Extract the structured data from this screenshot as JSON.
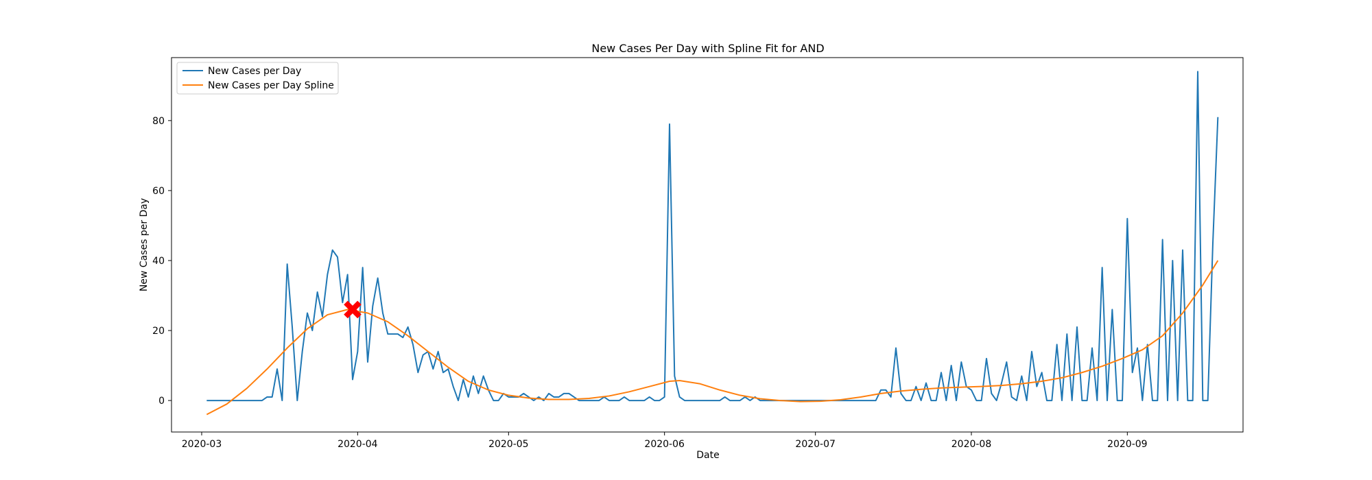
{
  "chart_data": {
    "type": "line",
    "title": "New Cases Per Day with Spline Fit for AND",
    "xlabel": "Date",
    "ylabel": "New Cases per Day",
    "x_axis": {
      "kind": "date",
      "range": [
        "2020-02-24",
        "2020-09-24"
      ],
      "ticks": [
        "2020-03-01",
        "2020-04-01",
        "2020-05-01",
        "2020-06-01",
        "2020-07-01",
        "2020-08-01",
        "2020-09-01"
      ],
      "tick_labels": [
        "2020-03",
        "2020-04",
        "2020-05",
        "2020-06",
        "2020-07",
        "2020-08",
        "2020-09"
      ]
    },
    "y_axis": {
      "range": [
        -9,
        98
      ],
      "ticks": [
        0,
        20,
        40,
        60,
        80
      ],
      "tick_labels": [
        "0",
        "20",
        "40",
        "60",
        "80"
      ]
    },
    "grid": false,
    "legend": {
      "placement": "top-left"
    },
    "series": [
      {
        "name": "New Cases per Day",
        "color": "#1f77b4",
        "points": [
          [
            "2020-03-02",
            0
          ],
          [
            "2020-03-13",
            0
          ],
          [
            "2020-03-14",
            1
          ],
          [
            "2020-03-15",
            1
          ],
          [
            "2020-03-16",
            9
          ],
          [
            "2020-03-17",
            0
          ],
          [
            "2020-03-18",
            39
          ],
          [
            "2020-03-19",
            21
          ],
          [
            "2020-03-20",
            0
          ],
          [
            "2020-03-21",
            14
          ],
          [
            "2020-03-22",
            25
          ],
          [
            "2020-03-23",
            20
          ],
          [
            "2020-03-24",
            31
          ],
          [
            "2020-03-25",
            24
          ],
          [
            "2020-03-26",
            36
          ],
          [
            "2020-03-27",
            43
          ],
          [
            "2020-03-28",
            41
          ],
          [
            "2020-03-29",
            28
          ],
          [
            "2020-03-30",
            36
          ],
          [
            "2020-03-31",
            6
          ],
          [
            "2020-04-01",
            14
          ],
          [
            "2020-04-02",
            38
          ],
          [
            "2020-04-03",
            11
          ],
          [
            "2020-04-04",
            27
          ],
          [
            "2020-04-05",
            35
          ],
          [
            "2020-04-06",
            25
          ],
          [
            "2020-04-07",
            19
          ],
          [
            "2020-04-08",
            19
          ],
          [
            "2020-04-09",
            19
          ],
          [
            "2020-04-10",
            18
          ],
          [
            "2020-04-11",
            21
          ],
          [
            "2020-04-12",
            16
          ],
          [
            "2020-04-13",
            8
          ],
          [
            "2020-04-14",
            13
          ],
          [
            "2020-04-15",
            14
          ],
          [
            "2020-04-16",
            9
          ],
          [
            "2020-04-17",
            14
          ],
          [
            "2020-04-18",
            8
          ],
          [
            "2020-04-19",
            9
          ],
          [
            "2020-04-20",
            4
          ],
          [
            "2020-04-21",
            0
          ],
          [
            "2020-04-22",
            6
          ],
          [
            "2020-04-23",
            1
          ],
          [
            "2020-04-24",
            7
          ],
          [
            "2020-04-25",
            2
          ],
          [
            "2020-04-26",
            7
          ],
          [
            "2020-04-27",
            3
          ],
          [
            "2020-04-28",
            0
          ],
          [
            "2020-04-29",
            0
          ],
          [
            "2020-04-30",
            2
          ],
          [
            "2020-05-01",
            1
          ],
          [
            "2020-05-02",
            1
          ],
          [
            "2020-05-03",
            1
          ],
          [
            "2020-05-04",
            2
          ],
          [
            "2020-05-05",
            1
          ],
          [
            "2020-05-06",
            0
          ],
          [
            "2020-05-07",
            1
          ],
          [
            "2020-05-08",
            0
          ],
          [
            "2020-05-09",
            2
          ],
          [
            "2020-05-10",
            1
          ],
          [
            "2020-05-11",
            1
          ],
          [
            "2020-05-12",
            2
          ],
          [
            "2020-05-13",
            2
          ],
          [
            "2020-05-14",
            1
          ],
          [
            "2020-05-15",
            0
          ],
          [
            "2020-05-16",
            0
          ],
          [
            "2020-05-17",
            0
          ],
          [
            "2020-05-18",
            0
          ],
          [
            "2020-05-19",
            0
          ],
          [
            "2020-05-20",
            1
          ],
          [
            "2020-05-21",
            0
          ],
          [
            "2020-05-22",
            0
          ],
          [
            "2020-05-23",
            0
          ],
          [
            "2020-05-24",
            1
          ],
          [
            "2020-05-25",
            0
          ],
          [
            "2020-05-26",
            0
          ],
          [
            "2020-05-27",
            0
          ],
          [
            "2020-05-28",
            0
          ],
          [
            "2020-05-29",
            1
          ],
          [
            "2020-05-30",
            0
          ],
          [
            "2020-05-31",
            0
          ],
          [
            "2020-06-01",
            1
          ],
          [
            "2020-06-02",
            79
          ],
          [
            "2020-06-03",
            7
          ],
          [
            "2020-06-04",
            1
          ],
          [
            "2020-06-05",
            0
          ],
          [
            "2020-06-06",
            0
          ],
          [
            "2020-06-07",
            0
          ],
          [
            "2020-06-08",
            0
          ],
          [
            "2020-06-09",
            0
          ],
          [
            "2020-06-10",
            0
          ],
          [
            "2020-06-11",
            0
          ],
          [
            "2020-06-12",
            0
          ],
          [
            "2020-06-13",
            1
          ],
          [
            "2020-06-14",
            0
          ],
          [
            "2020-06-15",
            0
          ],
          [
            "2020-06-16",
            0
          ],
          [
            "2020-06-17",
            1
          ],
          [
            "2020-06-18",
            0
          ],
          [
            "2020-06-19",
            1
          ],
          [
            "2020-06-20",
            0
          ],
          [
            "2020-06-21",
            0
          ],
          [
            "2020-07-13",
            0
          ],
          [
            "2020-07-14",
            3
          ],
          [
            "2020-07-15",
            3
          ],
          [
            "2020-07-16",
            1
          ],
          [
            "2020-07-17",
            15
          ],
          [
            "2020-07-18",
            2
          ],
          [
            "2020-07-19",
            0
          ],
          [
            "2020-07-20",
            0
          ],
          [
            "2020-07-21",
            4
          ],
          [
            "2020-07-22",
            0
          ],
          [
            "2020-07-23",
            5
          ],
          [
            "2020-07-24",
            0
          ],
          [
            "2020-07-25",
            0
          ],
          [
            "2020-07-26",
            8
          ],
          [
            "2020-07-27",
            0
          ],
          [
            "2020-07-28",
            10
          ],
          [
            "2020-07-29",
            0
          ],
          [
            "2020-07-30",
            11
          ],
          [
            "2020-07-31",
            4
          ],
          [
            "2020-08-01",
            3
          ],
          [
            "2020-08-02",
            0
          ],
          [
            "2020-08-03",
            0
          ],
          [
            "2020-08-04",
            12
          ],
          [
            "2020-08-05",
            2
          ],
          [
            "2020-08-06",
            0
          ],
          [
            "2020-08-07",
            5
          ],
          [
            "2020-08-08",
            11
          ],
          [
            "2020-08-09",
            1
          ],
          [
            "2020-08-10",
            0
          ],
          [
            "2020-08-11",
            7
          ],
          [
            "2020-08-12",
            0
          ],
          [
            "2020-08-13",
            14
          ],
          [
            "2020-08-14",
            4
          ],
          [
            "2020-08-15",
            8
          ],
          [
            "2020-08-16",
            0
          ],
          [
            "2020-08-17",
            0
          ],
          [
            "2020-08-18",
            16
          ],
          [
            "2020-08-19",
            0
          ],
          [
            "2020-08-20",
            19
          ],
          [
            "2020-08-21",
            0
          ],
          [
            "2020-08-22",
            21
          ],
          [
            "2020-08-23",
            0
          ],
          [
            "2020-08-24",
            0
          ],
          [
            "2020-08-25",
            15
          ],
          [
            "2020-08-26",
            0
          ],
          [
            "2020-08-27",
            38
          ],
          [
            "2020-08-28",
            0
          ],
          [
            "2020-08-29",
            26
          ],
          [
            "2020-08-30",
            0
          ],
          [
            "2020-08-31",
            0
          ],
          [
            "2020-09-01",
            52
          ],
          [
            "2020-09-02",
            8
          ],
          [
            "2020-09-03",
            15
          ],
          [
            "2020-09-04",
            0
          ],
          [
            "2020-09-05",
            16
          ],
          [
            "2020-09-06",
            0
          ],
          [
            "2020-09-07",
            0
          ],
          [
            "2020-09-08",
            46
          ],
          [
            "2020-09-09",
            0
          ],
          [
            "2020-09-10",
            40
          ],
          [
            "2020-09-11",
            0
          ],
          [
            "2020-09-12",
            43
          ],
          [
            "2020-09-13",
            0
          ],
          [
            "2020-09-14",
            0
          ],
          [
            "2020-09-15",
            94
          ],
          [
            "2020-09-16",
            0
          ],
          [
            "2020-09-17",
            0
          ],
          [
            "2020-09-18",
            45
          ],
          [
            "2020-09-19",
            81
          ]
        ]
      },
      {
        "name": "New Cases per Day Spline",
        "color": "#ff7f0e",
        "points": [
          [
            "2020-03-02",
            -4
          ],
          [
            "2020-03-06",
            -1
          ],
          [
            "2020-03-10",
            3.5
          ],
          [
            "2020-03-14",
            9
          ],
          [
            "2020-03-18",
            15
          ],
          [
            "2020-03-22",
            20.5
          ],
          [
            "2020-03-26",
            24.5
          ],
          [
            "2020-03-30",
            26
          ],
          [
            "2020-04-03",
            25
          ],
          [
            "2020-04-07",
            22.5
          ],
          [
            "2020-04-11",
            18.5
          ],
          [
            "2020-04-15",
            14
          ],
          [
            "2020-04-19",
            9.5
          ],
          [
            "2020-04-23",
            5.5
          ],
          [
            "2020-04-27",
            3
          ],
          [
            "2020-05-01",
            1.5
          ],
          [
            "2020-05-05",
            0.7
          ],
          [
            "2020-05-09",
            0.3
          ],
          [
            "2020-05-13",
            0.3
          ],
          [
            "2020-05-17",
            0.6
          ],
          [
            "2020-05-21",
            1.3
          ],
          [
            "2020-05-25",
            2.5
          ],
          [
            "2020-05-29",
            4
          ],
          [
            "2020-06-02",
            5.5
          ],
          [
            "2020-06-04",
            5.7
          ],
          [
            "2020-06-08",
            4.8
          ],
          [
            "2020-06-12",
            3
          ],
          [
            "2020-06-16",
            1.5
          ],
          [
            "2020-06-20",
            0.5
          ],
          [
            "2020-06-24",
            0
          ],
          [
            "2020-06-28",
            -0.3
          ],
          [
            "2020-07-02",
            -0.2
          ],
          [
            "2020-07-06",
            0.2
          ],
          [
            "2020-07-10",
            1
          ],
          [
            "2020-07-14",
            2
          ],
          [
            "2020-07-18",
            2.7
          ],
          [
            "2020-07-22",
            3.2
          ],
          [
            "2020-07-26",
            3.6
          ],
          [
            "2020-07-30",
            3.8
          ],
          [
            "2020-08-03",
            4
          ],
          [
            "2020-08-07",
            4.3
          ],
          [
            "2020-08-11",
            4.8
          ],
          [
            "2020-08-15",
            5.5
          ],
          [
            "2020-08-19",
            6.5
          ],
          [
            "2020-08-23",
            8
          ],
          [
            "2020-08-27",
            9.8
          ],
          [
            "2020-08-31",
            12
          ],
          [
            "2020-09-04",
            14.5
          ],
          [
            "2020-09-08",
            18.5
          ],
          [
            "2020-09-12",
            25
          ],
          [
            "2020-09-16",
            33
          ],
          [
            "2020-09-19",
            40
          ]
        ]
      }
    ],
    "marker": {
      "shape": "x",
      "color": "#ff0000",
      "date": "2020-03-31",
      "value": 26
    },
    "legend_entries": [
      "New Cases per Day",
      "New Cases per Day Spline"
    ]
  }
}
